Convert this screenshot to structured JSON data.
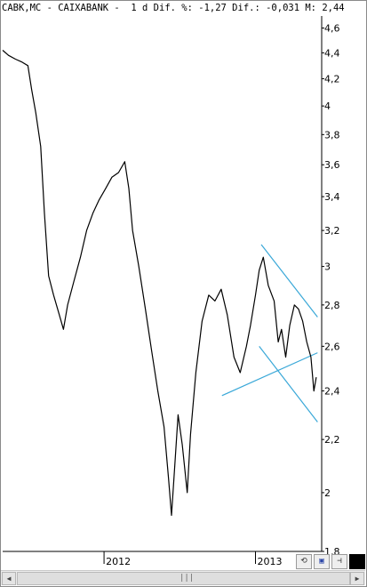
{
  "header": {
    "text": "CABK,MC - CAIXABANK -  1 d Dif. %: -1,27 Dif.: -0,031 M: 2,44"
  },
  "chart_data": {
    "type": "line",
    "title": "CABK,MC - CAIXABANK",
    "y_scale": "log",
    "ylim": [
      1.8,
      4.7
    ],
    "y_ticks": [
      "4,6",
      "4,4",
      "4,2",
      "4",
      "3,8",
      "3,6",
      "3,4",
      "3,2",
      "3",
      "2,8",
      "2,6",
      "2,4",
      "2,2",
      "2",
      "1,8"
    ],
    "y_tick_values": [
      4.6,
      4.4,
      4.2,
      4.0,
      3.8,
      3.6,
      3.4,
      3.2,
      3.0,
      2.8,
      2.6,
      2.4,
      2.2,
      2.0,
      1.8
    ],
    "x_ticks": [
      "2012",
      "2013"
    ],
    "x_tick_dates": [
      "2012-01-01",
      "2013-01-01"
    ],
    "xlim": [
      "2011-05-01",
      "2013-06-10"
    ],
    "grid": false,
    "series": [
      {
        "color": "#000000",
        "points": [
          [
            "2011-05-01",
            4.42
          ],
          [
            "2011-05-15",
            4.38
          ],
          [
            "2011-06-01",
            4.35
          ],
          [
            "2011-06-15",
            4.33
          ],
          [
            "2011-07-01",
            4.3
          ],
          [
            "2011-07-10",
            4.12
          ],
          [
            "2011-07-20",
            3.95
          ],
          [
            "2011-08-01",
            3.72
          ],
          [
            "2011-08-10",
            3.3
          ],
          [
            "2011-08-20",
            2.95
          ],
          [
            "2011-09-01",
            2.85
          ],
          [
            "2011-09-15",
            2.75
          ],
          [
            "2011-09-25",
            2.68
          ],
          [
            "2011-10-05",
            2.8
          ],
          [
            "2011-10-20",
            2.92
          ],
          [
            "2011-11-05",
            3.05
          ],
          [
            "2011-11-20",
            3.2
          ],
          [
            "2011-12-05",
            3.3
          ],
          [
            "2011-12-20",
            3.38
          ],
          [
            "2012-01-05",
            3.45
          ],
          [
            "2012-01-20",
            3.52
          ],
          [
            "2012-02-05",
            3.55
          ],
          [
            "2012-02-20",
            3.62
          ],
          [
            "2012-03-01",
            3.45
          ],
          [
            "2012-03-10",
            3.2
          ],
          [
            "2012-03-25",
            3.0
          ],
          [
            "2012-04-10",
            2.78
          ],
          [
            "2012-04-25",
            2.58
          ],
          [
            "2012-05-10",
            2.4
          ],
          [
            "2012-05-25",
            2.25
          ],
          [
            "2012-06-05",
            2.05
          ],
          [
            "2012-06-12",
            1.92
          ],
          [
            "2012-06-20",
            2.1
          ],
          [
            "2012-06-28",
            2.3
          ],
          [
            "2012-07-08",
            2.18
          ],
          [
            "2012-07-20",
            2.0
          ],
          [
            "2012-07-28",
            2.22
          ],
          [
            "2012-08-10",
            2.48
          ],
          [
            "2012-08-25",
            2.72
          ],
          [
            "2012-09-10",
            2.85
          ],
          [
            "2012-09-25",
            2.82
          ],
          [
            "2012-10-10",
            2.88
          ],
          [
            "2012-10-25",
            2.75
          ],
          [
            "2012-11-10",
            2.55
          ],
          [
            "2012-11-25",
            2.48
          ],
          [
            "2012-12-10",
            2.6
          ],
          [
            "2012-12-20",
            2.7
          ],
          [
            "2013-01-01",
            2.85
          ],
          [
            "2013-01-10",
            2.98
          ],
          [
            "2013-01-20",
            3.05
          ],
          [
            "2013-02-01",
            2.9
          ],
          [
            "2013-02-15",
            2.82
          ],
          [
            "2013-02-25",
            2.62
          ],
          [
            "2013-03-05",
            2.68
          ],
          [
            "2013-03-15",
            2.55
          ],
          [
            "2013-03-25",
            2.7
          ],
          [
            "2013-04-05",
            2.8
          ],
          [
            "2013-04-15",
            2.78
          ],
          [
            "2013-04-25",
            2.72
          ],
          [
            "2013-05-05",
            2.62
          ],
          [
            "2013-05-15",
            2.55
          ],
          [
            "2013-05-22",
            2.4
          ],
          [
            "2013-05-28",
            2.46
          ]
        ]
      }
    ],
    "trendlines": {
      "color": "#3aa8d8",
      "lines": [
        [
          [
            "2012-10-12",
            2.38
          ],
          [
            "2013-05-31",
            2.57
          ]
        ],
        [
          [
            "2013-01-15",
            3.12
          ],
          [
            "2013-05-31",
            2.74
          ]
        ],
        [
          [
            "2013-01-10",
            2.6
          ],
          [
            "2013-05-31",
            2.27
          ]
        ]
      ]
    }
  },
  "toolbar": {
    "buttons": [
      "refresh-icon",
      "save-icon",
      "pin-icon",
      "black-square-icon"
    ]
  }
}
